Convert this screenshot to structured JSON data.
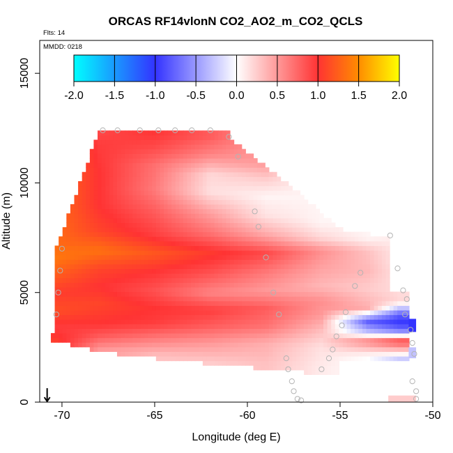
{
  "chart_data": {
    "type": "heatmap",
    "title": "ORCAS RF14vlonN CO2_AO2_m_CO2_QCLS",
    "flights_label": "Flts: 14",
    "date_label": "MMDD: 0218",
    "xlabel": "Longitude (deg E)",
    "ylabel": "Altitude (m)",
    "xlim": [
      -71.2,
      -50
    ],
    "ylim": [
      0,
      16500
    ],
    "x_ticks": [
      -70,
      -65,
      -60,
      -55,
      -50
    ],
    "x_tick_labels": [
      "-70",
      "-65",
      "-60",
      "-55",
      "-50"
    ],
    "y_ticks": [
      0,
      5000,
      10000,
      15000
    ],
    "y_tick_labels": [
      "0",
      "5000",
      "10000",
      "15000"
    ],
    "colorbar": {
      "min": -2.0,
      "max": 2.0,
      "ticks": [
        -2.0,
        -1.5,
        -1.0,
        -0.5,
        0.0,
        0.5,
        1.0,
        1.5,
        2.0
      ],
      "tick_labels": [
        "-2.0",
        "-1.5",
        "-1.0",
        "-0.5",
        "0.0",
        "0.5",
        "1.0",
        "1.5",
        "2.0"
      ],
      "colors": {
        "-2.0": "#00ffff",
        "-1.0": "#3333ff",
        "0.0": "#ffffff",
        "0.5": "#ff9999",
        "1.0": "#ff3333",
        "1.5": "#ff8c00",
        "2.0": "#ffff00"
      }
    },
    "field_profiles": [
      {
        "lon": -70.3,
        "values": [
          [
            2900,
            1.05
          ],
          [
            3400,
            0.95
          ],
          [
            4200,
            1.15
          ],
          [
            5000,
            1.05
          ],
          [
            5700,
            1.2
          ],
          [
            6600,
            1.38
          ],
          [
            7200,
            1.3
          ]
        ]
      },
      {
        "lon": -68.0,
        "values": [
          [
            2400,
            0.5
          ],
          [
            3000,
            0.8
          ],
          [
            3600,
            1.0
          ],
          [
            4500,
            1.1
          ],
          [
            5300,
            1.0
          ],
          [
            6100,
            1.1
          ],
          [
            6900,
            1.35
          ],
          [
            7800,
            1.1
          ],
          [
            9000,
            1.0
          ],
          [
            10500,
            1.0
          ],
          [
            11800,
            0.95
          ],
          [
            12300,
            0.9
          ]
        ]
      },
      {
        "lon": -65.0,
        "values": [
          [
            2100,
            0.3
          ],
          [
            2800,
            0.6
          ],
          [
            3600,
            0.95
          ],
          [
            4300,
            1.0
          ],
          [
            5100,
            0.85
          ],
          [
            6000,
            1.0
          ],
          [
            6800,
            1.2
          ],
          [
            7600,
            0.95
          ],
          [
            8700,
            0.8
          ],
          [
            9700,
            0.65
          ],
          [
            10800,
            0.7
          ],
          [
            11700,
            0.9
          ],
          [
            12400,
            1.0
          ]
        ]
      },
      {
        "lon": -62.0,
        "values": [
          [
            1800,
            0.25
          ],
          [
            2700,
            0.5
          ],
          [
            3500,
            0.8
          ],
          [
            4200,
            0.95
          ],
          [
            5000,
            0.6
          ],
          [
            5900,
            0.85
          ],
          [
            6800,
            1.05
          ],
          [
            7700,
            0.7
          ],
          [
            8700,
            0.45
          ],
          [
            9600,
            0.15
          ],
          [
            10400,
            0.2
          ],
          [
            11300,
            0.6
          ],
          [
            12100,
            0.8
          ]
        ]
      },
      {
        "lon": -59.0,
        "values": [
          [
            1700,
            0.3
          ],
          [
            2700,
            0.4
          ],
          [
            3500,
            0.7
          ],
          [
            4300,
            0.8
          ],
          [
            5100,
            0.5
          ],
          [
            5900,
            0.65
          ],
          [
            6800,
            0.9
          ],
          [
            7600,
            0.45
          ],
          [
            8500,
            0.15
          ],
          [
            9400,
            0.05
          ],
          [
            10200,
            0.25
          ],
          [
            10900,
            0.5
          ]
        ]
      },
      {
        "lon": -56.0,
        "values": [
          [
            1600,
            0.1
          ],
          [
            2500,
            0.15
          ],
          [
            3200,
            0.3
          ],
          [
            4000,
            0.5
          ],
          [
            4600,
            0.55
          ],
          [
            5300,
            0.35
          ],
          [
            6100,
            0.45
          ],
          [
            6900,
            0.55
          ],
          [
            7500,
            0.2
          ],
          [
            8200,
            0.05
          ]
        ]
      },
      {
        "lon": -53.5,
        "values": [
          [
            2100,
            0.0
          ],
          [
            2800,
            0.6
          ],
          [
            3200,
            -0.3
          ],
          [
            3700,
            -0.8
          ],
          [
            4300,
            0.4
          ],
          [
            5200,
            0.25
          ],
          [
            6000,
            0.35
          ],
          [
            6900,
            0.3
          ],
          [
            7500,
            0.05
          ]
        ]
      },
      {
        "lon": -51.8,
        "values": [
          [
            2000,
            -0.25
          ],
          [
            2800,
            0.9
          ],
          [
            3200,
            -0.5
          ],
          [
            3600,
            -1.0
          ],
          [
            4000,
            -0.8
          ],
          [
            4600,
            0.2
          ],
          [
            5500,
            0.15
          ],
          [
            6500,
            0.1
          ]
        ]
      }
    ],
    "flight_track_points": [
      [
        -70.3,
        4000
      ],
      [
        -70.2,
        5000
      ],
      [
        -70.1,
        6000
      ],
      [
        -70.0,
        7000
      ],
      [
        -67.8,
        12400
      ],
      [
        -67.0,
        12400
      ],
      [
        -65.8,
        12400
      ],
      [
        -64.8,
        12400
      ],
      [
        -63.9,
        12400
      ],
      [
        -63.0,
        12400
      ],
      [
        -62.0,
        12400
      ],
      [
        -61.0,
        12100
      ],
      [
        -60.5,
        11200
      ],
      [
        -59.6,
        8700
      ],
      [
        -59.4,
        8000
      ],
      [
        -59.0,
        6600
      ],
      [
        -58.6,
        5000
      ],
      [
        -58.3,
        4000
      ],
      [
        -57.9,
        2000
      ],
      [
        -57.8,
        1500
      ],
      [
        -57.6,
        950
      ],
      [
        -57.5,
        500
      ],
      [
        -57.3,
        150
      ],
      [
        -57.1,
        80
      ],
      [
        -56.0,
        1500
      ],
      [
        -55.6,
        2000
      ],
      [
        -55.4,
        2400
      ],
      [
        -55.2,
        3000
      ],
      [
        -54.9,
        3500
      ],
      [
        -54.7,
        4100
      ],
      [
        -54.2,
        5300
      ],
      [
        -53.9,
        5900
      ],
      [
        -52.3,
        7600
      ],
      [
        -51.9,
        6100
      ],
      [
        -51.6,
        5100
      ],
      [
        -51.4,
        4700
      ],
      [
        -51.5,
        4000
      ],
      [
        -51.2,
        3300
      ],
      [
        -51.1,
        2700
      ],
      [
        -51.0,
        2200
      ],
      [
        -51.1,
        950
      ],
      [
        -50.9,
        500
      ],
      [
        -50.9,
        150
      ]
    ],
    "arrow_position": {
      "lon": -70.8
    }
  }
}
